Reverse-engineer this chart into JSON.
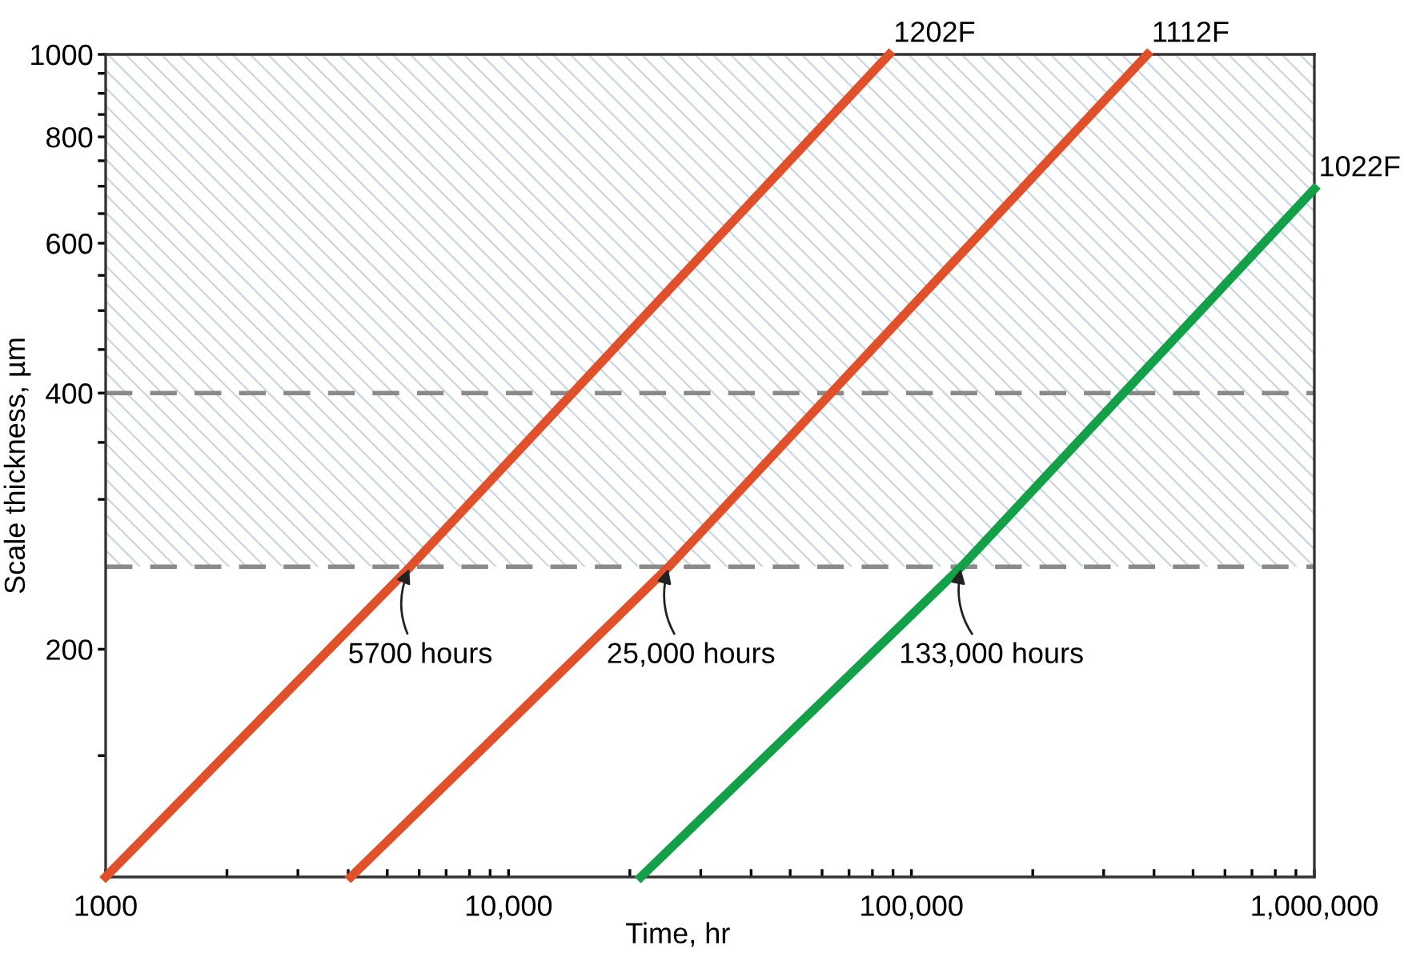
{
  "chart_data": {
    "type": "line",
    "xlabel": "Time, hr",
    "ylabel": "Scale thickness, µm",
    "log": "xy",
    "xlim": [
      1000,
      1000000
    ],
    "ylim": [
      108,
      1000
    ],
    "xticks": [
      {
        "value": 1000,
        "label": "1000"
      },
      {
        "value": 2000,
        "label": null
      },
      {
        "value": 3000,
        "label": null
      },
      {
        "value": 4000,
        "label": null
      },
      {
        "value": 5000,
        "label": null
      },
      {
        "value": 6000,
        "label": null
      },
      {
        "value": 7000,
        "label": null
      },
      {
        "value": 8000,
        "label": null
      },
      {
        "value": 9000,
        "label": null
      },
      {
        "value": 10000,
        "label": "10,000"
      },
      {
        "value": 20000,
        "label": null
      },
      {
        "value": 30000,
        "label": null
      },
      {
        "value": 40000,
        "label": null
      },
      {
        "value": 50000,
        "label": null
      },
      {
        "value": 60000,
        "label": null
      },
      {
        "value": 70000,
        "label": null
      },
      {
        "value": 80000,
        "label": null
      },
      {
        "value": 90000,
        "label": null
      },
      {
        "value": 100000,
        "label": "100,000"
      },
      {
        "value": 200000,
        "label": null
      },
      {
        "value": 300000,
        "label": null
      },
      {
        "value": 400000,
        "label": null
      },
      {
        "value": 500000,
        "label": null
      },
      {
        "value": 600000,
        "label": null
      },
      {
        "value": 700000,
        "label": null
      },
      {
        "value": 800000,
        "label": null
      },
      {
        "value": 900000,
        "label": null
      },
      {
        "value": 1000000,
        "label": "1,000,000"
      }
    ],
    "yticks": [
      {
        "value": 150,
        "label": null
      },
      200,
      {
        "value": 300,
        "label": null
      },
      {
        "value": 350,
        "label": null
      },
      400,
      {
        "value": 450,
        "label": null
      },
      {
        "value": 500,
        "label": null
      },
      {
        "value": 550,
        "label": null
      },
      600,
      {
        "value": 650,
        "label": null
      },
      {
        "value": 700,
        "label": null
      },
      {
        "value": 750,
        "label": null
      },
      800,
      {
        "value": 850,
        "label": null
      },
      {
        "value": 900,
        "label": null
      },
      {
        "value": 950,
        "label": null
      },
      1000
    ],
    "grid": false,
    "legend": false,
    "marker": "none",
    "line_style": "solid",
    "series": [
      {
        "name": "1202F",
        "color": "#e0502a",
        "x": [
          1000,
          5700,
          88000
        ],
        "values": [
          108,
          250,
          1000
        ]
      },
      {
        "name": "1112F",
        "color": "#e0502a",
        "x": [
          4060,
          25000,
          385000
        ],
        "values": [
          108,
          250,
          1000
        ]
      },
      {
        "name": "1022F",
        "color": "#13a049",
        "x": [
          21300,
          133000,
          1000000
        ],
        "values": [
          108,
          250,
          695
        ]
      }
    ],
    "ref_lines": [
      {
        "axis": "y",
        "value": 400,
        "color": "#8a8a8a",
        "line_style": "dashed"
      },
      {
        "axis": "y",
        "value": 250,
        "color": "#8a8a8a",
        "line_style": "dashed"
      }
    ],
    "bands": [
      {
        "axis": "y",
        "from": 250,
        "to": 1000,
        "color": "#c9d6e0"
      }
    ],
    "annotations": [
      {
        "text": "5700 hours",
        "x": 5700,
        "y": 250
      },
      {
        "text": "25,000 hours",
        "x": 25000,
        "y": 250
      },
      {
        "text": "133,000 hours",
        "x": 133000,
        "y": 250
      }
    ]
  }
}
